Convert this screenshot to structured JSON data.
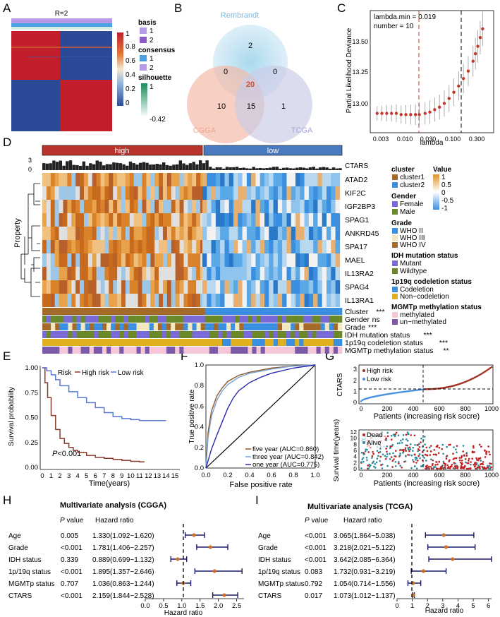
{
  "panels": {
    "A": "A",
    "B": "B",
    "C": "C",
    "D": "D",
    "E": "E",
    "F": "F",
    "G": "G",
    "H": "H",
    "I": "I"
  },
  "colors": {
    "red": "#c21f2a",
    "blue": "#2a4a98",
    "light_blue": "#8fb3d9",
    "purple": "#b79ae6",
    "green_light": "#b8e0c8",
    "orange": "#e07a27",
    "brown": "#7a3b1a",
    "high_bar": "#b8342c",
    "low_bar": "#4a7abf"
  },
  "panelA": {
    "title": "R=2",
    "legend": {
      "basis_title": "basis",
      "basis_1": "1",
      "basis_2": "2",
      "consensus_title": "consensus",
      "consensus_1": "1",
      "consensus_2": "2",
      "silhouette_title": "silhouette",
      "silhouette_top": "1",
      "silhouette_bottom": "-0.42",
      "scale_labels": [
        "1",
        "0.8",
        "0.6",
        "0.4",
        "0.2",
        "0"
      ]
    }
  },
  "panelB": {
    "sets": [
      "Rembrandt",
      "CGGA",
      "TCGA"
    ],
    "counts": {
      "r_only": "2",
      "r_c": "0",
      "r_t": "0",
      "all": "20",
      "c_only": "10",
      "c_t": "15",
      "t_only": "1"
    }
  },
  "panelC": {
    "annotation_1": "lambda.min = 0.019",
    "annotation_2": "number = 10",
    "ylabel": "Partial Likelihood Deviance",
    "xlabel": "lambda",
    "y_ticks": [
      "13.50",
      "13.25",
      "13.00"
    ],
    "x_ticks": [
      "0.003",
      "0.010",
      "0.030",
      "0.100",
      "0.300"
    ],
    "chart_data": {
      "type": "line",
      "title": "",
      "xlabel": "lambda",
      "ylabel": "Partial Likelihood Deviance",
      "x_log10": [
        -2.6,
        -2.5,
        -2.4,
        -2.3,
        -2.2,
        -2.1,
        -2.0,
        -1.9,
        -1.8,
        -1.72,
        -1.6,
        -1.5,
        -1.4,
        -1.3,
        -1.2,
        -1.1,
        -1.0,
        -0.9,
        -0.8,
        -0.7,
        -0.6,
        -0.55,
        -0.5,
        -0.45,
        -0.4
      ],
      "y": [
        12.94,
        12.94,
        12.94,
        12.94,
        12.94,
        12.93,
        12.93,
        12.93,
        12.93,
        12.93,
        12.94,
        12.95,
        12.97,
        12.99,
        13.02,
        13.06,
        13.11,
        13.16,
        13.22,
        13.28,
        13.36,
        13.42,
        13.48,
        13.55,
        13.62
      ],
      "lambda_min": 0.019,
      "lambda_1se": 0.13
    }
  },
  "panelD": {
    "group_high": "high",
    "group_low": "low",
    "ctars_label": "CTARS",
    "ctars_ticks": [
      "3",
      "0"
    ],
    "property_label": "Property",
    "genes": [
      "ATAD2",
      "KIF2C",
      "IGF2BP3",
      "SPAG1",
      "ANKRD45",
      "SPA17",
      "MAEL",
      "IL13RA2",
      "SPAG4",
      "IL13RA1"
    ],
    "tracks": [
      {
        "name": "Cluster",
        "sig": "***"
      },
      {
        "name": "Gender",
        "sig": "ns"
      },
      {
        "name": "Grade",
        "sig": "***"
      },
      {
        "name": "IDH mutation status",
        "sig": "***"
      },
      {
        "name": "1p19q codeletion status",
        "sig": "***"
      },
      {
        "name": "MGMTp methylation status",
        "sig": "**"
      }
    ],
    "legend": {
      "cluster_title": "cluster",
      "cluster1": "cluster1",
      "cluster2": "cluster2",
      "value_title": "Value",
      "value_ticks": [
        "1",
        "0.5",
        "0",
        "-0.5",
        "-1"
      ],
      "gender_title": "Gender",
      "female": "Female",
      "male": "Male",
      "grade_title": "Grade",
      "who2": "WHO II",
      "who3": "WHO III",
      "who4": "WHO IV",
      "idh_title": "IDH mutation status",
      "mutant": "Mutant",
      "wildtype": "Wildtype",
      "codel_title": "1p19q codeletion status",
      "codeletion": "Codeletion",
      "noncodel": "Non−codeletion",
      "mgmt_title": "MGMTp methylation status",
      "methylated": "methylated",
      "unmethylated": "un−methylated"
    }
  },
  "panelE": {
    "legend_prefix": "Risk",
    "high_label": "High risk",
    "low_label": "Low risk",
    "pvalue_p": "P",
    "pvalue_rest": "<0.001",
    "ylabel": "Survival probability",
    "xlabel": "Time(years)",
    "y_ticks": [
      "1.00",
      "0.75",
      "0.50",
      "0.25",
      "0.00"
    ],
    "x_ticks": [
      "0",
      "1",
      "2",
      "3",
      "4",
      "5",
      "6",
      "7",
      "8",
      "9",
      "10",
      "11",
      "12",
      "13",
      "14",
      "15"
    ],
    "chart_data": {
      "type": "line",
      "xlabel": "Time(years)",
      "ylabel": "Survival probability",
      "series": [
        {
          "name": "High risk",
          "x": [
            0,
            0.3,
            0.6,
            1,
            1.5,
            2,
            2.5,
            3,
            3.5,
            4,
            5,
            6,
            7,
            8,
            9,
            10,
            11,
            11.5
          ],
          "y": [
            1.0,
            0.85,
            0.7,
            0.52,
            0.38,
            0.29,
            0.24,
            0.2,
            0.17,
            0.15,
            0.12,
            0.1,
            0.09,
            0.08,
            0.07,
            0.06,
            0.055,
            0.05
          ]
        },
        {
          "name": "Low risk",
          "x": [
            0,
            0.5,
            1,
            1.5,
            2,
            3,
            4,
            5,
            6,
            7,
            8,
            9,
            10,
            11,
            12,
            13,
            14
          ],
          "y": [
            1.0,
            0.97,
            0.93,
            0.88,
            0.82,
            0.76,
            0.7,
            0.65,
            0.6,
            0.55,
            0.51,
            0.49,
            0.48,
            0.47,
            0.47,
            0.47,
            0.47
          ]
        }
      ],
      "xlim": [
        0,
        15
      ],
      "ylim": [
        0,
        1
      ]
    }
  },
  "panelF": {
    "ylabel": "True positive rate",
    "xlabel": "False positive rate",
    "ticks": [
      "0.0",
      "0.2",
      "0.4",
      "0.6",
      "0.8",
      "1.0"
    ],
    "legend": [
      "five year (AUC=0.860)",
      "three year (AUC=0.842)",
      "one year (AUC=0.775)"
    ],
    "chart_data": {
      "type": "line",
      "xlabel": "False positive rate",
      "ylabel": "True positive rate",
      "series": [
        {
          "name": "five year (AUC=0.860)",
          "x": [
            0,
            0.02,
            0.05,
            0.1,
            0.15,
            0.2,
            0.3,
            0.4,
            0.5,
            0.6,
            0.8,
            1.0
          ],
          "y": [
            0,
            0.35,
            0.55,
            0.7,
            0.78,
            0.84,
            0.9,
            0.93,
            0.95,
            0.97,
            0.99,
            1.0
          ]
        },
        {
          "name": "three year (AUC=0.842)",
          "x": [
            0,
            0.02,
            0.05,
            0.1,
            0.15,
            0.2,
            0.3,
            0.4,
            0.5,
            0.6,
            0.8,
            1.0
          ],
          "y": [
            0,
            0.3,
            0.5,
            0.66,
            0.75,
            0.81,
            0.88,
            0.92,
            0.94,
            0.96,
            0.99,
            1.0
          ]
        },
        {
          "name": "one year (AUC=0.775)",
          "x": [
            0,
            0.05,
            0.1,
            0.15,
            0.2,
            0.25,
            0.3,
            0.4,
            0.5,
            0.6,
            0.8,
            1.0
          ],
          "y": [
            0,
            0.18,
            0.32,
            0.45,
            0.58,
            0.68,
            0.75,
            0.83,
            0.88,
            0.92,
            0.97,
            1.0
          ]
        }
      ],
      "xlim": [
        0,
        1
      ],
      "ylim": [
        0,
        1
      ]
    }
  },
  "panelG": {
    "top_ylabel": "CTARS",
    "top_ticks": [
      "3",
      "2",
      "1",
      "0"
    ],
    "bottom_ylabel": "Survival time(years)",
    "bottom_ticks": [
      "12",
      "10",
      "8",
      "6",
      "4",
      "2",
      "0"
    ],
    "xlabel": "Patients (increasing risk socre)",
    "x_ticks": [
      "0",
      "200",
      "400",
      "600",
      "800",
      "1000"
    ],
    "high_risk": "High risk",
    "low_risk": "Low risk",
    "dead": "Dead",
    "alive": "Alive",
    "chart_data": {
      "type": "scatter",
      "xlabel": "Patients (increasing risk socre)",
      "ylabel": "CTARS",
      "cutoff_patient": 490,
      "cutoff_score": 1.2,
      "xlim": [
        0,
        1000
      ]
    }
  },
  "panelH": {
    "title": "Multivariate analysis (CGGA)",
    "p_header_italic": "P",
    "p_header_rest": " value",
    "hr_header": "Hazard ratio",
    "xlabel": "Hazard ratio",
    "x_ticks": [
      "0.0",
      "0.5",
      "1.0",
      "1.5",
      "2.0",
      "2.5"
    ],
    "rows": [
      {
        "name": "Age",
        "p": "0.005",
        "hr": "1.330(1.092−1.620)"
      },
      {
        "name": "Grade",
        "p": "<0.001",
        "hr": "1.781(1.406−2.257)"
      },
      {
        "name": "IDH status",
        "p": "0.339",
        "hr": "0.889(0.699−1.132)"
      },
      {
        "name": "1p/19q status",
        "p": "<0.001",
        "hr": "1.895(1.357−2.646)"
      },
      {
        "name": "MGMTp status",
        "p": "0.707",
        "hr": "1.036(0.863−1.244)"
      },
      {
        "name": "CTARS",
        "p": "<0.001",
        "hr": "2.159(1.844−2.528)"
      }
    ],
    "chart_data": {
      "type": "forest",
      "hr": [
        1.33,
        1.781,
        0.889,
        1.895,
        1.036,
        2.159
      ],
      "lo": [
        1.092,
        1.406,
        0.699,
        1.357,
        0.863,
        1.844
      ],
      "hi": [
        1.62,
        2.257,
        1.132,
        2.646,
        1.244,
        2.528
      ],
      "xlim": [
        0,
        2.7
      ]
    }
  },
  "panelI": {
    "title": "Multivariate analysis (TCGA)",
    "p_header_italic": "P",
    "p_header_rest": " value",
    "hr_header": "Hazard ratio",
    "xlabel": "Hazard ratio",
    "x_ticks": [
      "0",
      "1",
      "2",
      "3",
      "4",
      "5",
      "6"
    ],
    "rows": [
      {
        "name": "Age",
        "p": "<0.001",
        "hr": "3.065(1.864−5.038)"
      },
      {
        "name": "Grade",
        "p": "<0.001",
        "hr": "3.218(2.021−5.122)"
      },
      {
        "name": "IDH status",
        "p": "<0.001",
        "hr": "3.642(2.085−6.364)"
      },
      {
        "name": "1p/19q status",
        "p": "0.083",
        "hr": "1.732(0.931−3.219)"
      },
      {
        "name": "MGMTp status",
        "p": "0.792",
        "hr": "1.054(0.714−1.556)"
      },
      {
        "name": "CTARS",
        "p": "0.017",
        "hr": "1.073(1.012−1.137)"
      }
    ],
    "chart_data": {
      "type": "forest",
      "hr": [
        3.065,
        3.218,
        3.642,
        1.732,
        1.054,
        1.073
      ],
      "lo": [
        1.864,
        2.021,
        2.085,
        0.931,
        0.714,
        1.012
      ],
      "hi": [
        5.038,
        5.122,
        6.364,
        3.219,
        1.556,
        1.137
      ],
      "xlim": [
        0,
        6.2
      ]
    }
  }
}
